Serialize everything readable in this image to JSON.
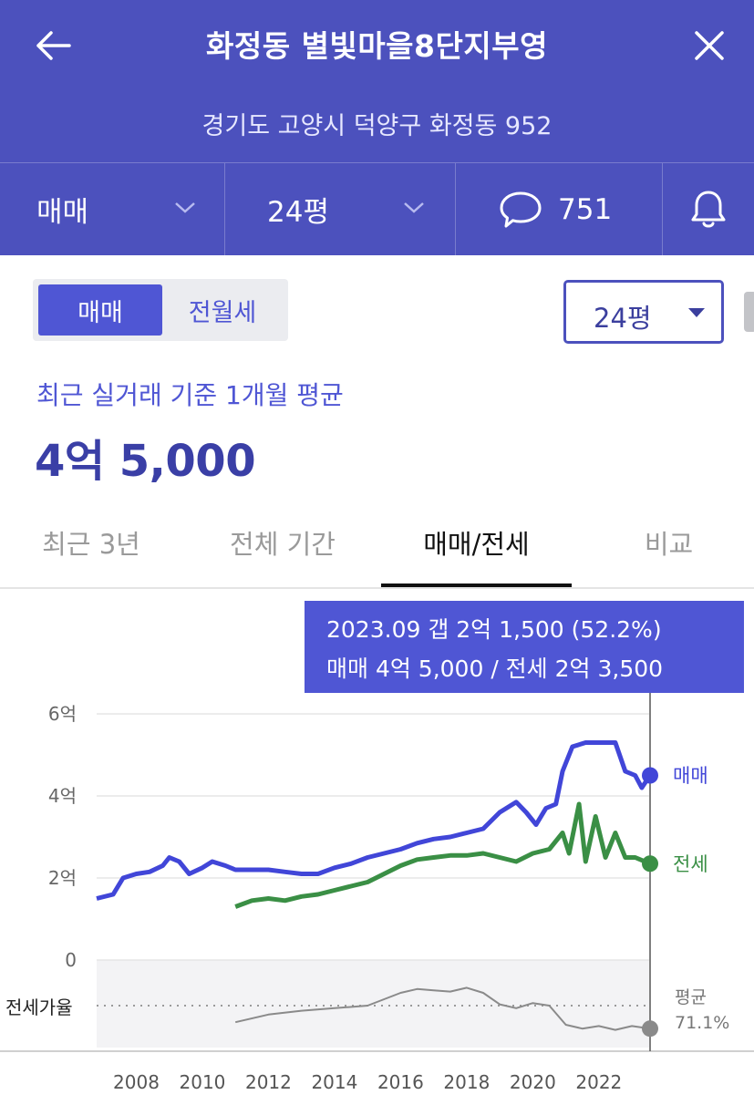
{
  "header": {
    "title": "화정동 별빛마을8단지부영",
    "address": "경기도 고양시 덕양구 화정동 952",
    "filters": {
      "deal_type": "매매",
      "size": "24평",
      "comment_count": "751"
    }
  },
  "toggle": {
    "active": "매매",
    "inactive": "전월세"
  },
  "size_select": {
    "value": "24평"
  },
  "summary": {
    "label": "최근 실거래 기준 1개월 평균",
    "price": "4억 5,000"
  },
  "tabs": [
    {
      "label": "최근 3년",
      "active": false
    },
    {
      "label": "전체 기간",
      "active": false
    },
    {
      "label": "매매/전세",
      "active": true
    },
    {
      "label": "비교",
      "active": false
    }
  ],
  "tooltip": {
    "line1": "2023.09  갭 2억 1,500 (52.2%)",
    "line2": "매매 4억 5,000 / 전세 2억 3,500"
  },
  "colors": {
    "brand": "#4c51bd",
    "sale": "#4146d8",
    "jeonse": "#3a8f45",
    "ratio": "#8a8a8a"
  },
  "chart_data": {
    "type": "line",
    "y_ticks": [
      "6억",
      "4억",
      "2억",
      "0"
    ],
    "x_ticks": [
      "2008",
      "2010",
      "2012",
      "2014",
      "2016",
      "2018",
      "2020",
      "2022"
    ],
    "ylim": [
      0,
      6
    ],
    "y_unit": "억",
    "series": [
      {
        "name": "매매",
        "color": "#4146d8",
        "points": [
          [
            2006.8,
            1.5
          ],
          [
            2007.3,
            1.6
          ],
          [
            2007.6,
            2.0
          ],
          [
            2008.0,
            2.1
          ],
          [
            2008.4,
            2.15
          ],
          [
            2008.8,
            2.3
          ],
          [
            2009.0,
            2.5
          ],
          [
            2009.3,
            2.4
          ],
          [
            2009.6,
            2.1
          ],
          [
            2010.0,
            2.25
          ],
          [
            2010.3,
            2.4
          ],
          [
            2010.7,
            2.3
          ],
          [
            2011.0,
            2.2
          ],
          [
            2011.5,
            2.2
          ],
          [
            2012.0,
            2.2
          ],
          [
            2012.5,
            2.15
          ],
          [
            2013.0,
            2.1
          ],
          [
            2013.5,
            2.1
          ],
          [
            2014.0,
            2.25
          ],
          [
            2014.5,
            2.35
          ],
          [
            2015.0,
            2.5
          ],
          [
            2015.5,
            2.6
          ],
          [
            2016.0,
            2.7
          ],
          [
            2016.5,
            2.85
          ],
          [
            2017.0,
            2.95
          ],
          [
            2017.5,
            3.0
          ],
          [
            2018.0,
            3.1
          ],
          [
            2018.5,
            3.2
          ],
          [
            2019.0,
            3.6
          ],
          [
            2019.5,
            3.85
          ],
          [
            2019.8,
            3.6
          ],
          [
            2020.1,
            3.3
          ],
          [
            2020.4,
            3.7
          ],
          [
            2020.7,
            3.8
          ],
          [
            2020.9,
            4.6
          ],
          [
            2021.2,
            5.2
          ],
          [
            2021.6,
            5.3
          ],
          [
            2022.0,
            5.3
          ],
          [
            2022.5,
            5.3
          ],
          [
            2022.8,
            4.6
          ],
          [
            2023.1,
            4.5
          ],
          [
            2023.3,
            4.2
          ],
          [
            2023.55,
            4.5
          ]
        ]
      },
      {
        "name": "전세",
        "color": "#3a8f45",
        "points": [
          [
            2011.0,
            1.3
          ],
          [
            2011.5,
            1.45
          ],
          [
            2012.0,
            1.5
          ],
          [
            2012.5,
            1.45
          ],
          [
            2013.0,
            1.55
          ],
          [
            2013.5,
            1.6
          ],
          [
            2014.0,
            1.7
          ],
          [
            2014.5,
            1.8
          ],
          [
            2015.0,
            1.9
          ],
          [
            2015.5,
            2.1
          ],
          [
            2016.0,
            2.3
          ],
          [
            2016.5,
            2.45
          ],
          [
            2017.0,
            2.5
          ],
          [
            2017.5,
            2.55
          ],
          [
            2018.0,
            2.55
          ],
          [
            2018.5,
            2.6
          ],
          [
            2019.0,
            2.5
          ],
          [
            2019.5,
            2.4
          ],
          [
            2020.0,
            2.6
          ],
          [
            2020.5,
            2.7
          ],
          [
            2020.9,
            3.1
          ],
          [
            2021.1,
            2.6
          ],
          [
            2021.4,
            3.8
          ],
          [
            2021.6,
            2.4
          ],
          [
            2021.9,
            3.5
          ],
          [
            2022.2,
            2.5
          ],
          [
            2022.5,
            3.1
          ],
          [
            2022.8,
            2.5
          ],
          [
            2023.1,
            2.5
          ],
          [
            2023.55,
            2.35
          ]
        ]
      },
      {
        "name": "전세가율",
        "color": "#8a8a8a",
        "points": [
          [
            2011.0,
            57
          ],
          [
            2012.0,
            63
          ],
          [
            2013.0,
            66
          ],
          [
            2014.0,
            68
          ],
          [
            2015.0,
            70
          ],
          [
            2015.5,
            75
          ],
          [
            2016.0,
            80
          ],
          [
            2016.5,
            83
          ],
          [
            2017.0,
            82
          ],
          [
            2017.5,
            81
          ],
          [
            2018.0,
            84
          ],
          [
            2018.5,
            80
          ],
          [
            2019.0,
            71
          ],
          [
            2019.5,
            68
          ],
          [
            2020.0,
            72
          ],
          [
            2020.5,
            70
          ],
          [
            2021.0,
            55
          ],
          [
            2021.5,
            52
          ],
          [
            2022.0,
            54
          ],
          [
            2022.5,
            51
          ],
          [
            2023.0,
            54
          ],
          [
            2023.55,
            52
          ]
        ]
      }
    ],
    "end_labels": {
      "sale": "매매",
      "jeonse": "전세"
    },
    "ratio_label": "전세가율",
    "ratio_avg_label": "평균",
    "ratio_avg_value": "71.1%",
    "x_range": [
      2006.8,
      2023.55
    ]
  }
}
